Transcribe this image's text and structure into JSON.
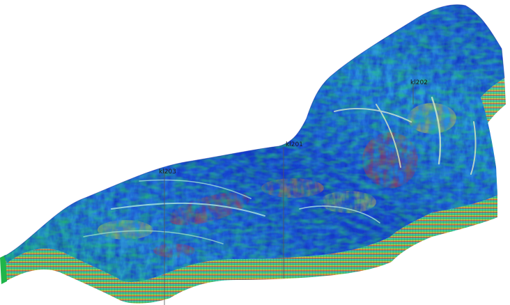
{
  "scene": {
    "description_visible_text": "",
    "wells": [
      {
        "label": "kl203"
      },
      {
        "label": "kl201"
      },
      {
        "label": "kl202"
      }
    ],
    "colors": {
      "background": "#ffffff",
      "deep_blue": "#1330c8",
      "mid_blue": "#2a6ad8",
      "cyan": "#19c6d6",
      "green": "#22c35a",
      "yellow": "#e8e23a",
      "red": "#d8342a"
    }
  }
}
